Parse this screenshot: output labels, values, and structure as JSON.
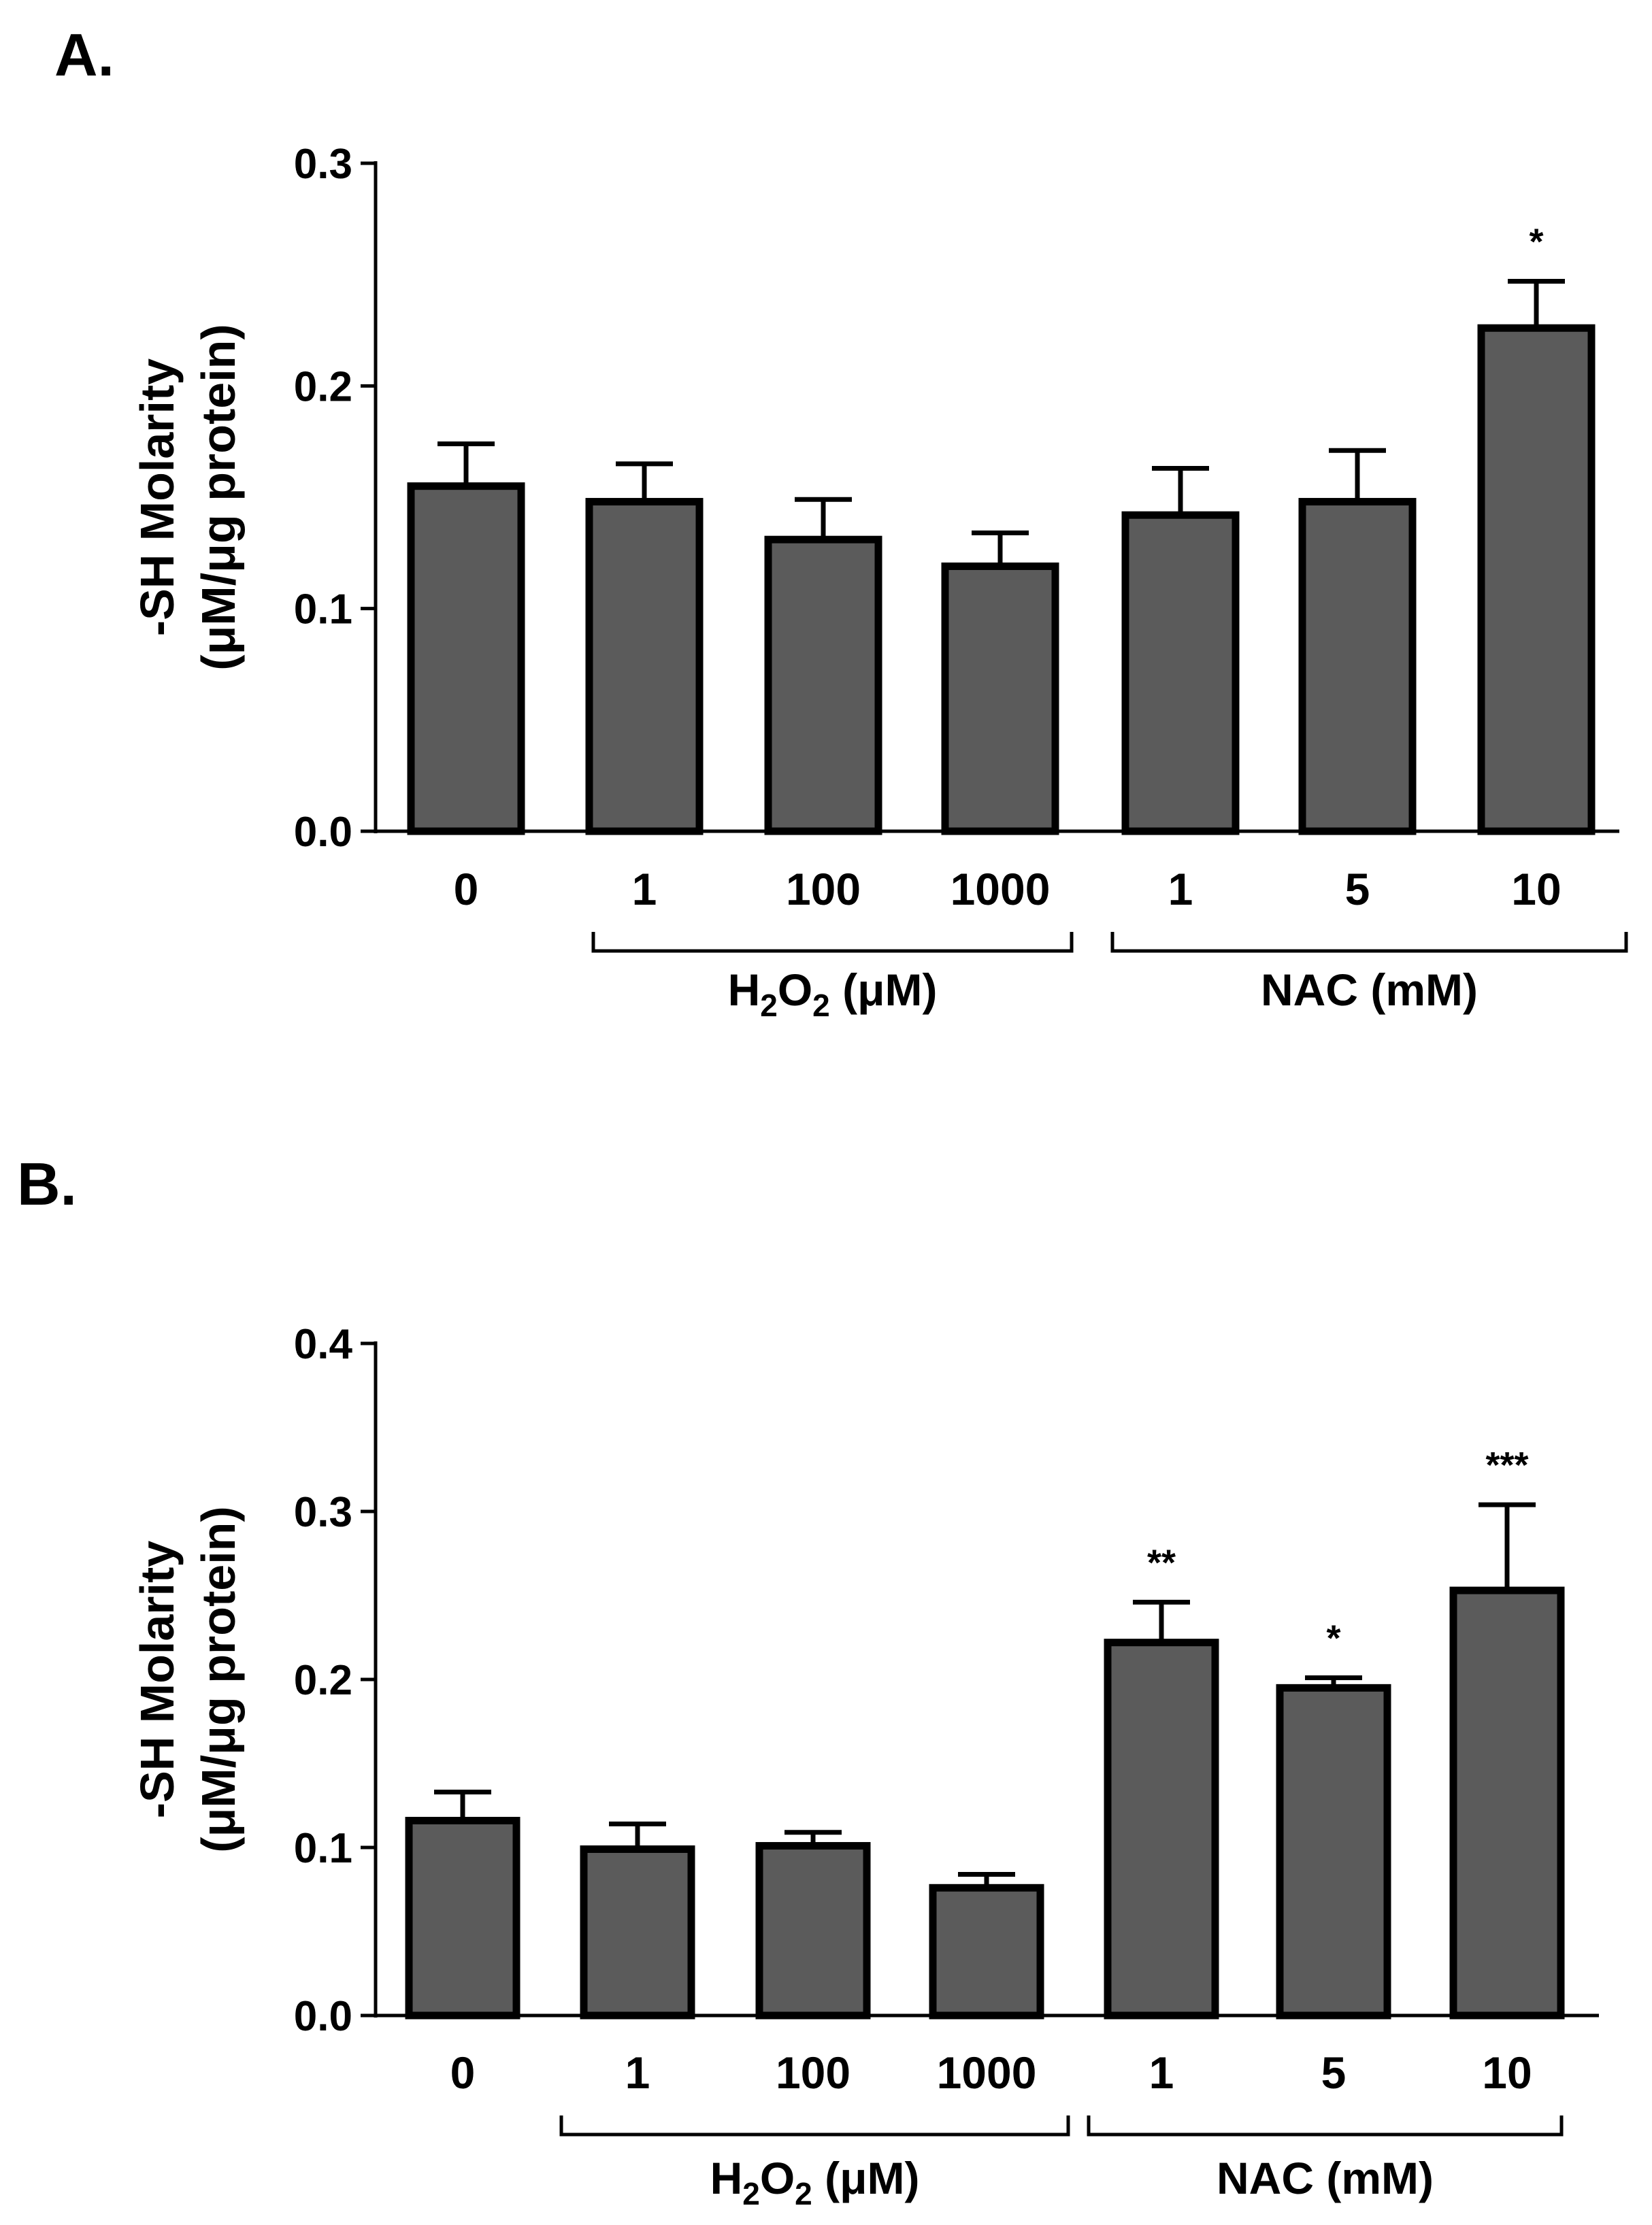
{
  "colors": {
    "bar_fill": "#5b5b5b",
    "stroke": "#000000",
    "background": "#ffffff"
  },
  "chart_data": [
    {
      "panel": "A.",
      "type": "bar",
      "ylabel_line1": "-SH Molarity",
      "ylabel_line2": "(μM/μg protein)",
      "ylim": [
        0,
        0.3
      ],
      "yticks": [
        "0.0",
        "0.1",
        "0.2",
        "0.3"
      ],
      "categories": [
        "0",
        "1",
        "100",
        "1000",
        "1",
        "5",
        "10"
      ],
      "values": [
        0.155,
        0.148,
        0.131,
        0.119,
        0.142,
        0.148,
        0.226
      ],
      "errors": [
        0.019,
        0.017,
        0.018,
        0.015,
        0.021,
        0.023,
        0.021
      ],
      "significance": [
        "",
        "",
        "",
        "",
        "",
        "",
        "*"
      ],
      "groups": [
        {
          "label_main": "H",
          "sub1": "2",
          "mid": "O",
          "sub2": "2",
          "label_rest": " (μM)",
          "from": 1,
          "to": 3
        },
        {
          "label_main": "NAC (mM)",
          "sub1": "",
          "mid": "",
          "sub2": "",
          "label_rest": "",
          "from": 4,
          "to": 6
        }
      ]
    },
    {
      "panel": "B.",
      "type": "bar",
      "ylabel_line1": "-SH Molarity",
      "ylabel_line2": "(μM/μg protein)",
      "ylim": [
        0,
        0.4
      ],
      "yticks": [
        "0.0",
        "0.1",
        "0.2",
        "0.3",
        "0.4"
      ],
      "categories": [
        "0",
        "1",
        "100",
        "1000",
        "1",
        "5",
        "10"
      ],
      "values": [
        0.116,
        0.099,
        0.101,
        0.076,
        0.222,
        0.195,
        0.253
      ],
      "errors": [
        0.017,
        0.015,
        0.008,
        0.008,
        0.024,
        0.006,
        0.051
      ],
      "significance": [
        "",
        "",
        "",
        "",
        "**",
        "*",
        "***"
      ],
      "groups": [
        {
          "label_main": "H",
          "sub1": "2",
          "mid": "O",
          "sub2": "2",
          "label_rest": " (μM)",
          "from": 1,
          "to": 3
        },
        {
          "label_main": "NAC (mM)",
          "sub1": "",
          "mid": "",
          "sub2": "",
          "label_rest": "",
          "from": 4,
          "to": 6
        }
      ]
    }
  ]
}
